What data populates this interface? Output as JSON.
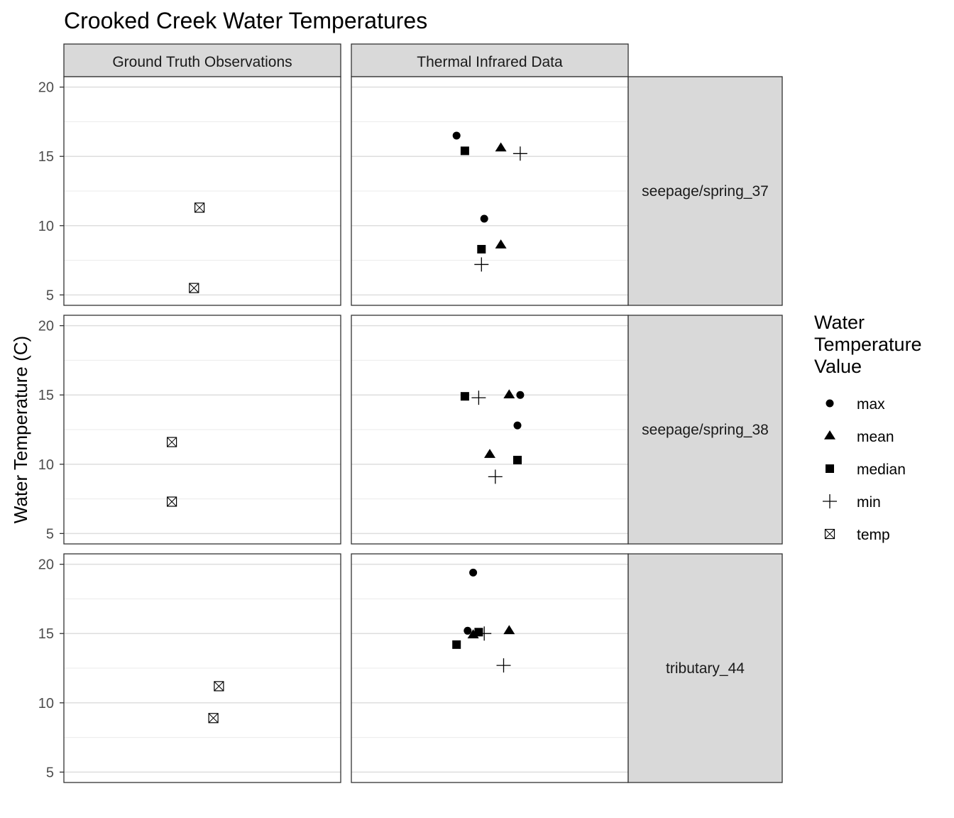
{
  "chart_data": {
    "type": "scatter",
    "title": "Crooked Creek Water Temperatures",
    "ylabel": "Water Temperature (C)",
    "ylim": [
      5,
      20
    ],
    "yticks": [
      5,
      10,
      15,
      20
    ],
    "grid": true,
    "legend_position": "right",
    "legend": {
      "title_lines": [
        "Water",
        "Temperature",
        "Value"
      ],
      "entries": [
        {
          "key": "max",
          "label": "max",
          "shape": "circle"
        },
        {
          "key": "mean",
          "label": "mean",
          "shape": "triangle"
        },
        {
          "key": "median",
          "label": "median",
          "shape": "square"
        },
        {
          "key": "min",
          "label": "min",
          "shape": "plus"
        },
        {
          "key": "temp",
          "label": "temp",
          "shape": "boxed-x"
        }
      ]
    },
    "columns": [
      "Ground Truth Observations",
      "Thermal Infrared Data"
    ],
    "rows": [
      "seepage/spring_37",
      "seepage/spring_38",
      "tributary_44"
    ],
    "points": [
      {
        "row": 0,
        "col": 0,
        "series": "temp",
        "y": 11.3,
        "jitter": -0.01
      },
      {
        "row": 0,
        "col": 0,
        "series": "temp",
        "y": 5.5,
        "jitter": -0.03
      },
      {
        "row": 0,
        "col": 1,
        "series": "max",
        "y": 16.5,
        "jitter": -0.12
      },
      {
        "row": 0,
        "col": 1,
        "series": "mean",
        "y": 15.6,
        "jitter": 0.04
      },
      {
        "row": 0,
        "col": 1,
        "series": "median",
        "y": 15.4,
        "jitter": -0.09
      },
      {
        "row": 0,
        "col": 1,
        "series": "min",
        "y": 15.2,
        "jitter": 0.11
      },
      {
        "row": 0,
        "col": 1,
        "series": "max",
        "y": 10.5,
        "jitter": -0.02
      },
      {
        "row": 0,
        "col": 1,
        "series": "mean",
        "y": 8.6,
        "jitter": 0.04
      },
      {
        "row": 0,
        "col": 1,
        "series": "median",
        "y": 8.3,
        "jitter": -0.03
      },
      {
        "row": 0,
        "col": 1,
        "series": "min",
        "y": 7.2,
        "jitter": -0.03
      },
      {
        "row": 1,
        "col": 0,
        "series": "temp",
        "y": 11.6,
        "jitter": -0.11
      },
      {
        "row": 1,
        "col": 0,
        "series": "temp",
        "y": 7.3,
        "jitter": -0.11
      },
      {
        "row": 1,
        "col": 0,
        "series": "dummy",
        "y": null,
        "jitter": 0
      },
      {
        "row": 1,
        "col": 1,
        "series": "max",
        "y": 15.0,
        "jitter": 0.11
      },
      {
        "row": 1,
        "col": 1,
        "series": "mean",
        "y": 15.0,
        "jitter": 0.07
      },
      {
        "row": 1,
        "col": 1,
        "series": "median",
        "y": 14.9,
        "jitter": -0.09
      },
      {
        "row": 1,
        "col": 1,
        "series": "min",
        "y": 14.8,
        "jitter": -0.04
      },
      {
        "row": 1,
        "col": 1,
        "series": "max",
        "y": 12.8,
        "jitter": 0.1
      },
      {
        "row": 1,
        "col": 1,
        "series": "mean",
        "y": 10.7,
        "jitter": 0.0
      },
      {
        "row": 1,
        "col": 1,
        "series": "median",
        "y": 10.3,
        "jitter": 0.1
      },
      {
        "row": 1,
        "col": 1,
        "series": "min",
        "y": 9.1,
        "jitter": 0.02
      },
      {
        "row": 2,
        "col": 0,
        "series": "temp",
        "y": 11.2,
        "jitter": 0.06
      },
      {
        "row": 2,
        "col": 0,
        "series": "temp",
        "y": 8.9,
        "jitter": 0.04
      },
      {
        "row": 2,
        "col": 1,
        "series": "max",
        "y": 19.4,
        "jitter": -0.06
      },
      {
        "row": 2,
        "col": 1,
        "series": "max",
        "y": 15.2,
        "jitter": -0.08
      },
      {
        "row": 2,
        "col": 1,
        "series": "mean",
        "y": 15.2,
        "jitter": 0.07
      },
      {
        "row": 2,
        "col": 1,
        "series": "mean",
        "y": 14.9,
        "jitter": -0.06
      },
      {
        "row": 2,
        "col": 1,
        "series": "median",
        "y": 15.1,
        "jitter": -0.04
      },
      {
        "row": 2,
        "col": 1,
        "series": "median",
        "y": 14.2,
        "jitter": -0.12
      },
      {
        "row": 2,
        "col": 1,
        "series": "min",
        "y": 15.0,
        "jitter": -0.02
      },
      {
        "row": 2,
        "col": 1,
        "series": "min",
        "y": 12.7,
        "jitter": 0.05
      }
    ]
  }
}
